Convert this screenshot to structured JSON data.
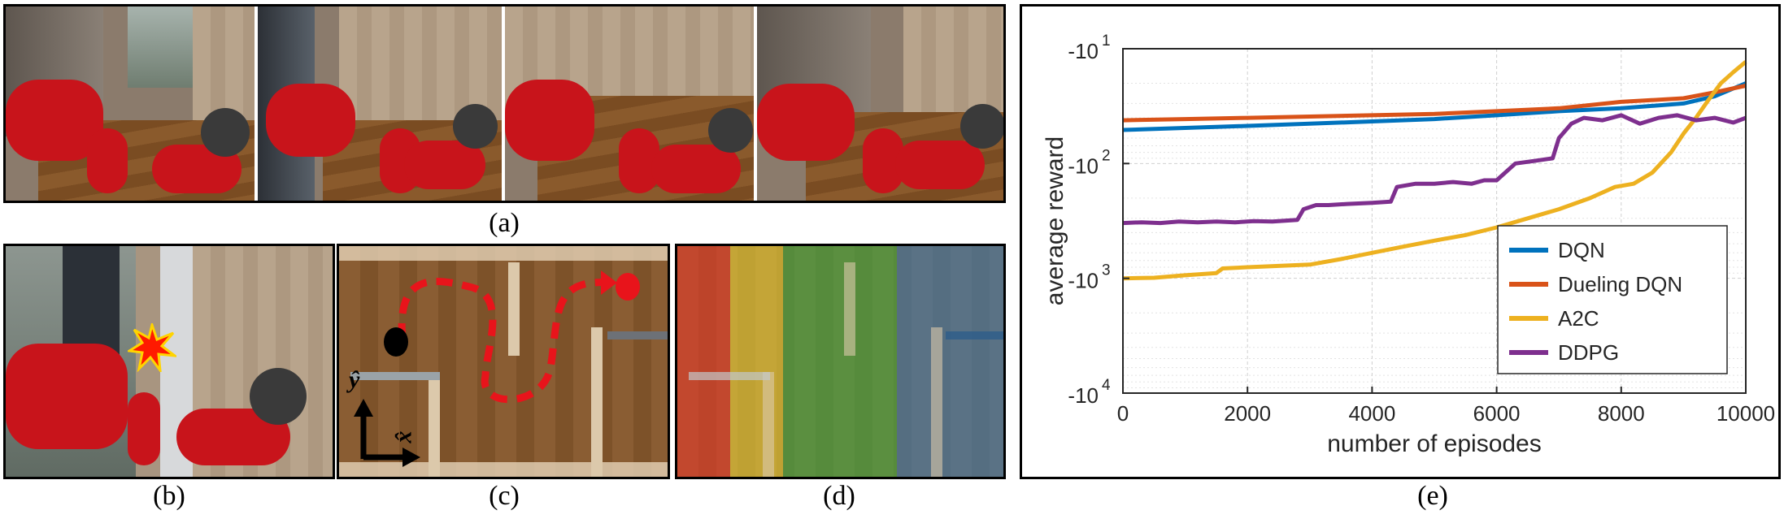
{
  "captions": {
    "a": "(a)",
    "b": "(b)",
    "c": "(c)",
    "d": "(d)",
    "e": "(e)"
  },
  "panel_c": {
    "y_axis_label": "ŷ",
    "x_axis_label": "x̂"
  },
  "colors": {
    "dqn": "#0072BD",
    "dueling": "#D95319",
    "a2c": "#EDB120",
    "ddpg": "#7E2F8E",
    "arm": "#c8141b",
    "path": "#e8141b"
  },
  "zones": [
    {
      "color": "#e53b2b"
    },
    {
      "color": "#e9d23a"
    },
    {
      "color": "#3fae48"
    },
    {
      "color": "#3e7fb8"
    }
  ],
  "chart_data": {
    "type": "line",
    "title": "",
    "xlabel": "number of episodes",
    "ylabel": "average reward",
    "xlim": [
      0,
      10000
    ],
    "ylim": [
      -10000,
      -10
    ],
    "yscale": "log (negative values)",
    "xticks": [
      "0",
      "2000",
      "4000",
      "6000",
      "8000",
      "10000"
    ],
    "yticks": [
      {
        "base": "-10",
        "exp": "1",
        "value": -10
      },
      {
        "base": "-10",
        "exp": "2",
        "value": -100
      },
      {
        "base": "-10",
        "exp": "3",
        "value": -1000
      },
      {
        "base": "-10",
        "exp": "4",
        "value": -10000
      }
    ],
    "grid": true,
    "legend": "bottom-right",
    "series": [
      {
        "name": "DQN",
        "color": "#0072BD",
        "x": [
          0,
          1000,
          2000,
          3000,
          4000,
          5000,
          6000,
          7000,
          8000,
          9000,
          9500,
          10000
        ],
        "y": [
          -51,
          -49,
          -47,
          -45,
          -43,
          -41,
          -38,
          -35,
          -33,
          -30,
          -26,
          -20
        ]
      },
      {
        "name": "Dueling DQN",
        "color": "#D95319",
        "x": [
          0,
          1000,
          2000,
          3000,
          4000,
          5000,
          6000,
          7000,
          7500,
          8000,
          9000,
          9500,
          10000
        ],
        "y": [
          -42,
          -41,
          -40,
          -39,
          -38,
          -37,
          -35,
          -33,
          -31,
          -29,
          -27,
          -24,
          -21
        ]
      },
      {
        "name": "A2C",
        "color": "#EDB120",
        "x": [
          0,
          500,
          1000,
          1500,
          1600,
          2000,
          2500,
          3000,
          3500,
          4000,
          4500,
          5000,
          5500,
          6000,
          6500,
          7000,
          7500,
          7900,
          8200,
          8500,
          8800,
          9000,
          9200,
          9400,
          9600,
          9800,
          10000
        ],
        "y": [
          -1000,
          -990,
          -940,
          -900,
          -820,
          -800,
          -780,
          -760,
          -680,
          -600,
          -530,
          -470,
          -420,
          -360,
          -300,
          -250,
          -200,
          -160,
          -150,
          -120,
          -80,
          -55,
          -40,
          -28,
          -20,
          -16,
          -13
        ]
      },
      {
        "name": "DDPG",
        "color": "#7E2F8E",
        "x": [
          0,
          300,
          600,
          900,
          1200,
          1500,
          1800,
          2100,
          2400,
          2800,
          2900,
          3100,
          3300,
          3600,
          4000,
          4300,
          4400,
          4700,
          5000,
          5300,
          5600,
          5800,
          6000,
          6300,
          6600,
          6900,
          7000,
          7200,
          7400,
          7700,
          8000,
          8300,
          8600,
          8900,
          9200,
          9500,
          9800,
          10000
        ],
        "y": [
          -330,
          -325,
          -330,
          -320,
          -325,
          -320,
          -325,
          -318,
          -320,
          -310,
          -250,
          -230,
          -230,
          -225,
          -220,
          -215,
          -160,
          -150,
          -150,
          -145,
          -150,
          -140,
          -140,
          -100,
          -95,
          -90,
          -60,
          -45,
          -40,
          -42,
          -38,
          -45,
          -40,
          -38,
          -42,
          -40,
          -44,
          -40
        ]
      }
    ]
  }
}
